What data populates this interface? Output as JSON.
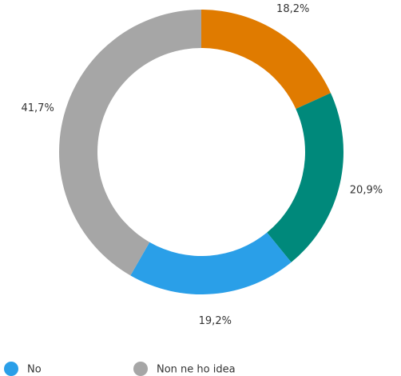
{
  "chart_data": {
    "type": "donut",
    "categories": [
      null,
      null,
      "No",
      "Non ne ho idea"
    ],
    "values": [
      18.2,
      20.9,
      19.2,
      41.7
    ],
    "value_labels": [
      "18,2%",
      "20,9%",
      "19,2%",
      "41,7%"
    ],
    "colors": [
      "#e07b00",
      "#00897b",
      "#2a9fe8",
      "#a6a6a6"
    ],
    "legend": "bottom"
  }
}
